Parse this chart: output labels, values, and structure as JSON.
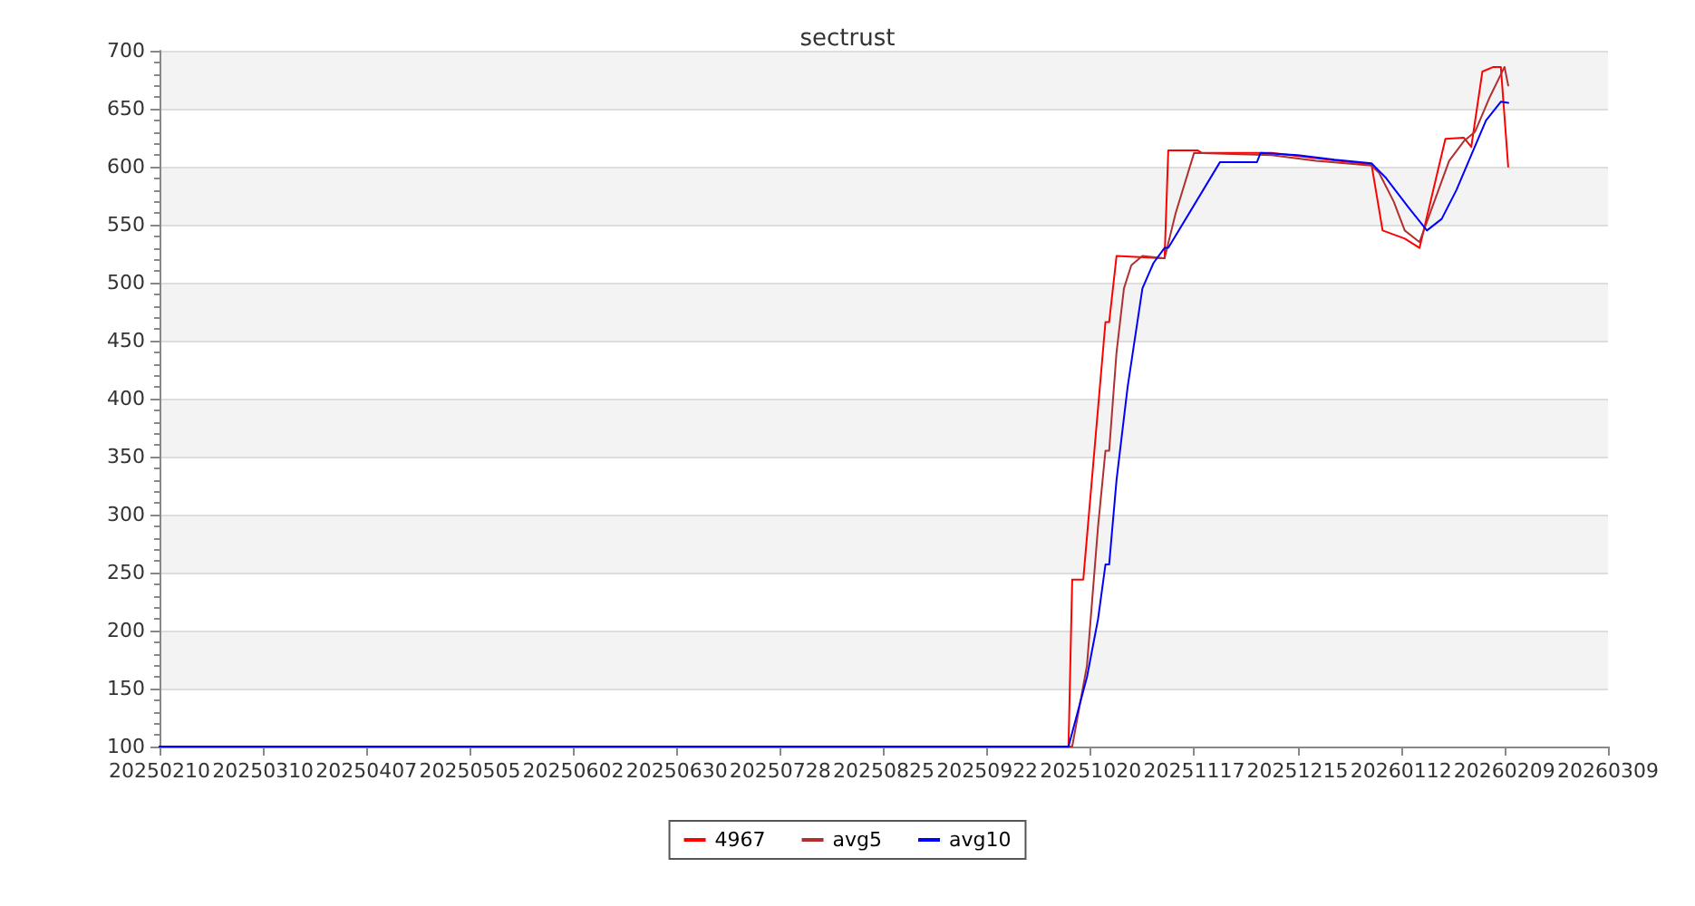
{
  "chart_data": {
    "type": "line",
    "title": "sectrust",
    "xlim": [
      "2025-02-10",
      "2026-03-09"
    ],
    "xticks": [
      {
        "value": "2025-02-10",
        "label": "20250210"
      },
      {
        "value": "2025-03-10",
        "label": "20250310"
      },
      {
        "value": "2025-04-07",
        "label": "20250407"
      },
      {
        "value": "2025-05-05",
        "label": "20250505"
      },
      {
        "value": "2025-06-02",
        "label": "20250602"
      },
      {
        "value": "2025-06-30",
        "label": "20250630"
      },
      {
        "value": "2025-07-28",
        "label": "20250728"
      },
      {
        "value": "2025-08-25",
        "label": "20250825"
      },
      {
        "value": "2025-09-22",
        "label": "20250922"
      },
      {
        "value": "2025-10-20",
        "label": "20251020"
      },
      {
        "value": "2025-11-17",
        "label": "20251117"
      },
      {
        "value": "2025-12-15",
        "label": "20251215"
      },
      {
        "value": "2026-01-12",
        "label": "20260112"
      },
      {
        "value": "2026-02-09",
        "label": "20260209"
      },
      {
        "value": "2026-03-09",
        "label": "20260309"
      }
    ],
    "ylim": [
      100,
      700
    ],
    "yticks": [
      100,
      150,
      200,
      250,
      300,
      350,
      400,
      450,
      500,
      550,
      600,
      650,
      700
    ],
    "grid": "y",
    "legend": "bottom",
    "marker": "none",
    "line_style": "solid",
    "series": [
      {
        "name": "4967",
        "color": "#ff0000",
        "x": [
          "2025-02-10",
          "2025-10-14",
          "2025-10-15",
          "2025-10-18",
          "2025-10-24",
          "2025-10-25",
          "2025-10-27",
          "2025-11-09",
          "2025-11-10",
          "2025-11-18",
          "2025-11-19",
          "2025-12-08",
          "2025-12-26",
          "2026-01-04",
          "2026-01-07",
          "2026-01-13",
          "2026-01-17",
          "2026-01-24",
          "2026-01-29",
          "2026-01-31",
          "2026-02-03",
          "2026-02-06",
          "2026-02-08",
          "2026-02-10"
        ],
        "values": [
          100,
          100,
          244,
          244,
          466,
          466,
          523,
          521,
          614,
          614,
          612,
          612,
          605,
          602,
          545,
          538,
          530,
          624,
          625,
          617,
          682,
          686,
          686,
          600
        ]
      },
      {
        "name": "avg5",
        "color": "#b03030",
        "x": [
          "2025-02-10",
          "2025-10-15",
          "2025-10-19",
          "2025-10-22",
          "2025-10-24",
          "2025-10-25",
          "2025-10-27",
          "2025-10-29",
          "2025-10-31",
          "2025-11-03",
          "2025-11-09",
          "2025-11-12",
          "2025-11-17",
          "2025-12-08",
          "2025-12-20",
          "2026-01-04",
          "2026-01-06",
          "2026-01-10",
          "2026-01-13",
          "2026-01-17",
          "2026-01-21",
          "2026-01-25",
          "2026-01-29",
          "2026-02-01",
          "2026-02-05",
          "2026-02-09",
          "2026-02-10"
        ],
        "values": [
          100,
          100,
          170,
          290,
          355,
          355,
          440,
          495,
          515,
          523,
          521,
          560,
          612,
          610,
          605,
          601,
          595,
          570,
          545,
          535,
          570,
          605,
          622,
          630,
          660,
          686,
          670
        ]
      },
      {
        "name": "avg10",
        "color": "#0000ff",
        "x": [
          "2025-02-10",
          "2025-10-14",
          "2025-10-19",
          "2025-10-22",
          "2025-10-24",
          "2025-10-25",
          "2025-10-27",
          "2025-10-30",
          "2025-11-03",
          "2025-11-06",
          "2025-11-09",
          "2025-11-10",
          "2025-11-24",
          "2025-12-04",
          "2025-12-05",
          "2025-12-15",
          "2025-12-25",
          "2026-01-04",
          "2026-01-08",
          "2026-01-14",
          "2026-01-19",
          "2026-01-23",
          "2026-01-27",
          "2026-01-31",
          "2026-02-04",
          "2026-02-08",
          "2026-02-10"
        ],
        "values": [
          100,
          100,
          160,
          210,
          257,
          257,
          330,
          410,
          495,
          517,
          530,
          530,
          604,
          604,
          612,
          610,
          606,
          603,
          590,
          565,
          545,
          555,
          580,
          610,
          640,
          656,
          655
        ]
      }
    ]
  }
}
